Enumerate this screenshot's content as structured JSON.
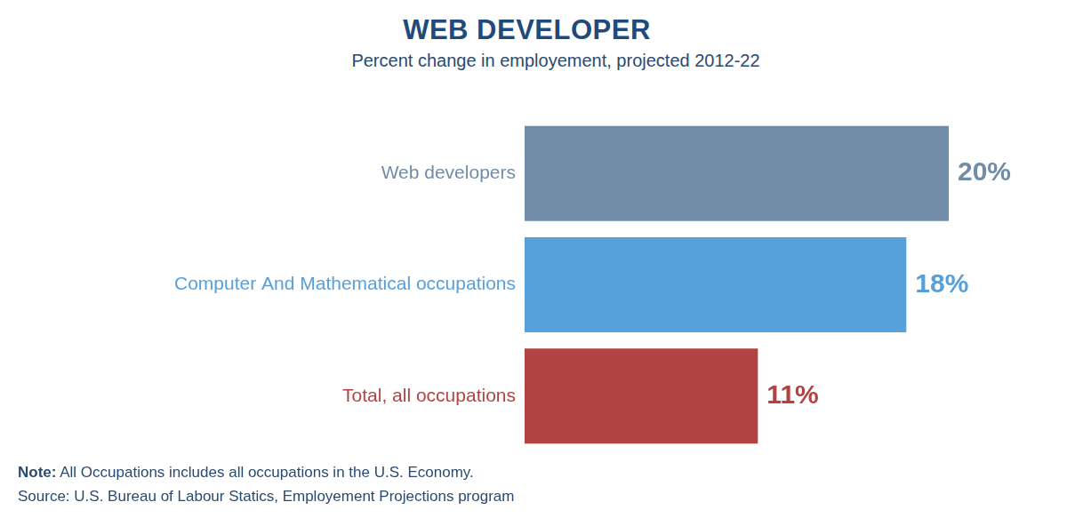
{
  "chart_data": {
    "type": "bar",
    "orientation": "horizontal",
    "title": "WEB DEVELOPER",
    "subtitle": "Percent change in employement, projected 2012-22",
    "categories": [
      "Web developers",
      "Computer And Mathematical occupations",
      "Total, all occupations"
    ],
    "values": [
      20,
      18,
      11
    ],
    "value_labels": [
      "20%",
      "18%",
      "11%"
    ],
    "colors": [
      "#718ca6",
      "#56a0db",
      "#b34242"
    ],
    "xlim": [
      0,
      20
    ],
    "xticks": [
      0,
      5,
      10,
      15,
      20
    ],
    "grid": false,
    "tick_labels": false,
    "data_labels": true,
    "note": {
      "label": "Note:",
      "text": "All Occupations includes all occupations in the U.S. Economy."
    },
    "source": "Source: U.S. Bureau of Labour Statics, Employement Projections program"
  }
}
